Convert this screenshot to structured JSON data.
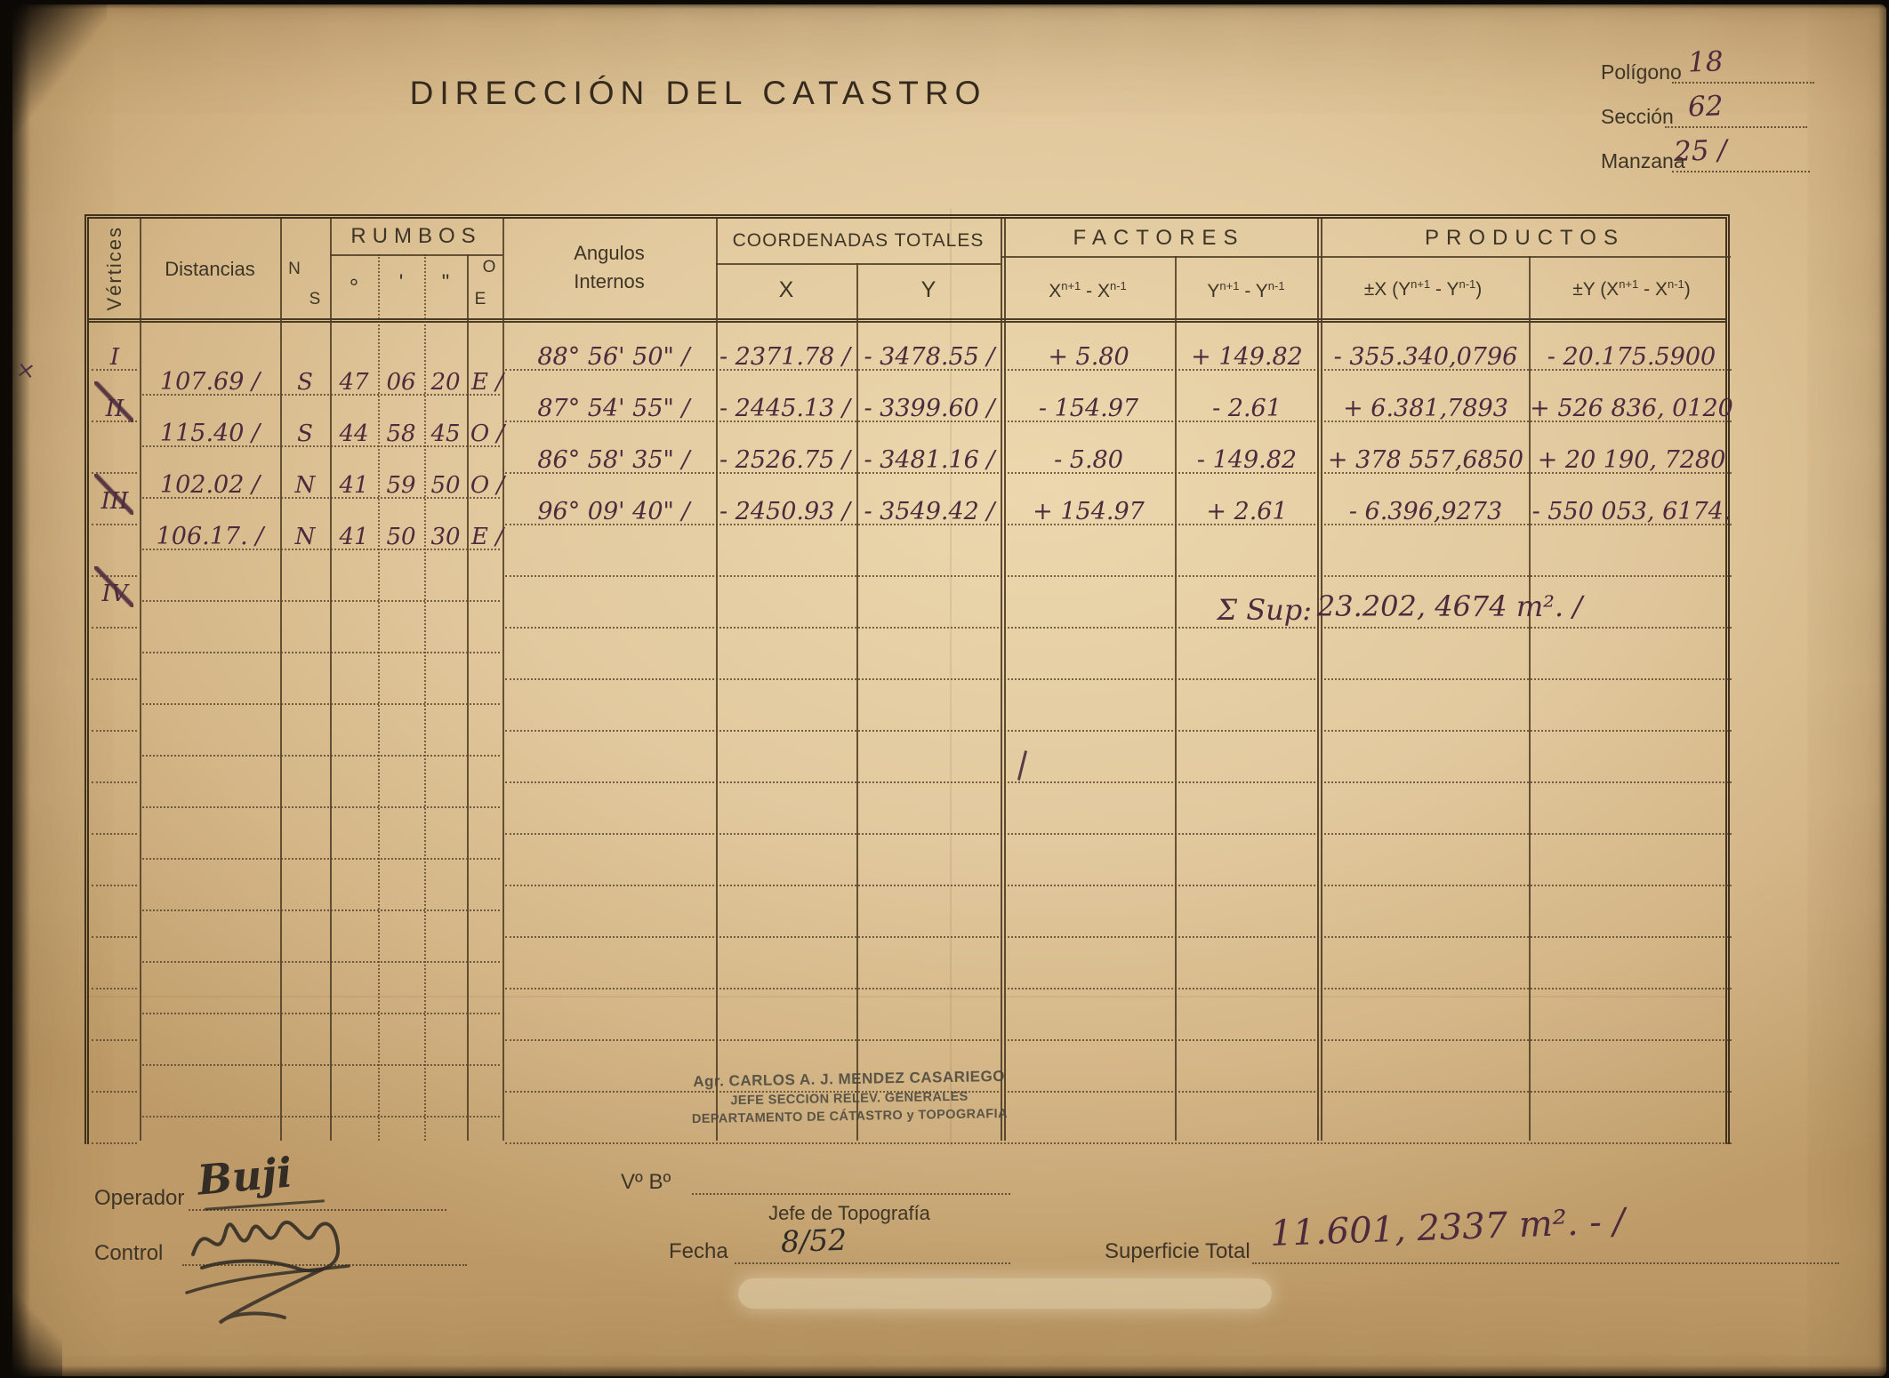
{
  "page": {
    "title": "DIRECCIÓN DEL CATASTRO",
    "margin_mark": "×",
    "ref_fields": [
      {
        "label": "Polígono",
        "value": "18"
      },
      {
        "label": "Sección",
        "value": "62"
      },
      {
        "label": "Manzana",
        "value": "25 /"
      }
    ]
  },
  "table": {
    "headers": {
      "vertices": "Vértices",
      "distancias": "Distancias",
      "rumbos": "RUMBOS",
      "rumbos_n": "N",
      "rumbos_s": "S",
      "rumbos_deg": "°",
      "rumbos_min": "'",
      "rumbos_sec": "\"",
      "rumbos_o": "O",
      "rumbos_e": "E",
      "angulos_line1": "Angulos",
      "angulos_line2": "Internos",
      "coordenadas": "COORDENADAS TOTALES",
      "x": "X",
      "y": "Y",
      "factores": "FACTORES",
      "factor_x": {
        "base": "X",
        "sup1": "n+1",
        "mid": " - X",
        "sup2": "n-1"
      },
      "factor_y": {
        "base": "Y",
        "sup1": "n+1",
        "mid": " - Y",
        "sup2": "n-1"
      },
      "productos": "PRODUCTOS",
      "producto_x": {
        "pre": "±X (Y",
        "sup1": "n+1",
        "mid": " - Y",
        "sup2": "n-1",
        "post": ")"
      },
      "producto_y": {
        "pre": "±Y (X",
        "sup1": "n+1",
        "mid": " - X",
        "sup2": "n-1",
        "post": ")"
      }
    },
    "rows": [
      {
        "vertice": "I",
        "distancia": "107.69 /",
        "ns": "S",
        "grados": "47",
        "minutos": "06",
        "segundos": "20",
        "oe": "E /",
        "angulo": "88° 56' 50\" /",
        "x": "- 2371.78 /",
        "y": "- 3478.55 /",
        "factor_x": "+ 5.80",
        "factor_y": "+ 149.82",
        "producto_x": "- 355.340,0796",
        "producto_y": "- 20.175.5900"
      },
      {
        "vertice": "II",
        "distancia": "115.40 /",
        "ns": "S",
        "grados": "44",
        "minutos": "58",
        "segundos": "45",
        "oe": "O /",
        "angulo": "87° 54' 55\" /",
        "x": "- 2445.13 /",
        "y": "- 3399.60 /",
        "factor_x": "- 154.97",
        "factor_y": "- 2.61",
        "producto_x": "+ 6.381,7893",
        "producto_y": "+ 526 836, 0120"
      },
      {
        "vertice": "III",
        "distancia": "102.02 /",
        "ns": "N",
        "grados": "41",
        "minutos": "59",
        "segundos": "50",
        "oe": "O /",
        "angulo": "86° 58' 35\" /",
        "x": "- 2526.75 /",
        "y": "- 3481.16 /",
        "factor_x": "- 5.80",
        "factor_y": "- 149.82",
        "producto_x": "+ 378 557,6850",
        "producto_y": "+ 20 190, 7280"
      },
      {
        "vertice": "IV",
        "distancia": "106.17. /",
        "ns": "N",
        "grados": "41",
        "minutos": "50",
        "segundos": "30",
        "oe": "E /",
        "angulo": "96° 09' 40\" /",
        "x": "- 2450.93 /",
        "y": "- 3549.42 /",
        "factor_x": "+ 154.97",
        "factor_y": "+ 2.61",
        "producto_x": "- 6.396,9273",
        "producto_y": "- 550 053, 6174."
      }
    ],
    "suma_superficie": {
      "label": "Σ Sup:",
      "value": "23.202, 4674 m². /"
    }
  },
  "footer": {
    "operador": {
      "label": "Operador",
      "signature": "Buji"
    },
    "control": {
      "label": "Control"
    },
    "vobo": {
      "label": "Vº Bº",
      "sub": "Jefe de Topografía"
    },
    "stamp": {
      "line1": "Agr. CARLOS A. J. MENDEZ CASARIEGO",
      "line2": "JEFE SECCION RELEV. GENERALES",
      "line3": "DEPARTAMENTO DE CÁTASTRO y TOPOGRAFIA"
    },
    "fecha": {
      "label": "Fecha",
      "value": "8/52"
    },
    "superficie": {
      "label": "Superficie Total",
      "value": "11.601, 2337 m². - /"
    }
  }
}
